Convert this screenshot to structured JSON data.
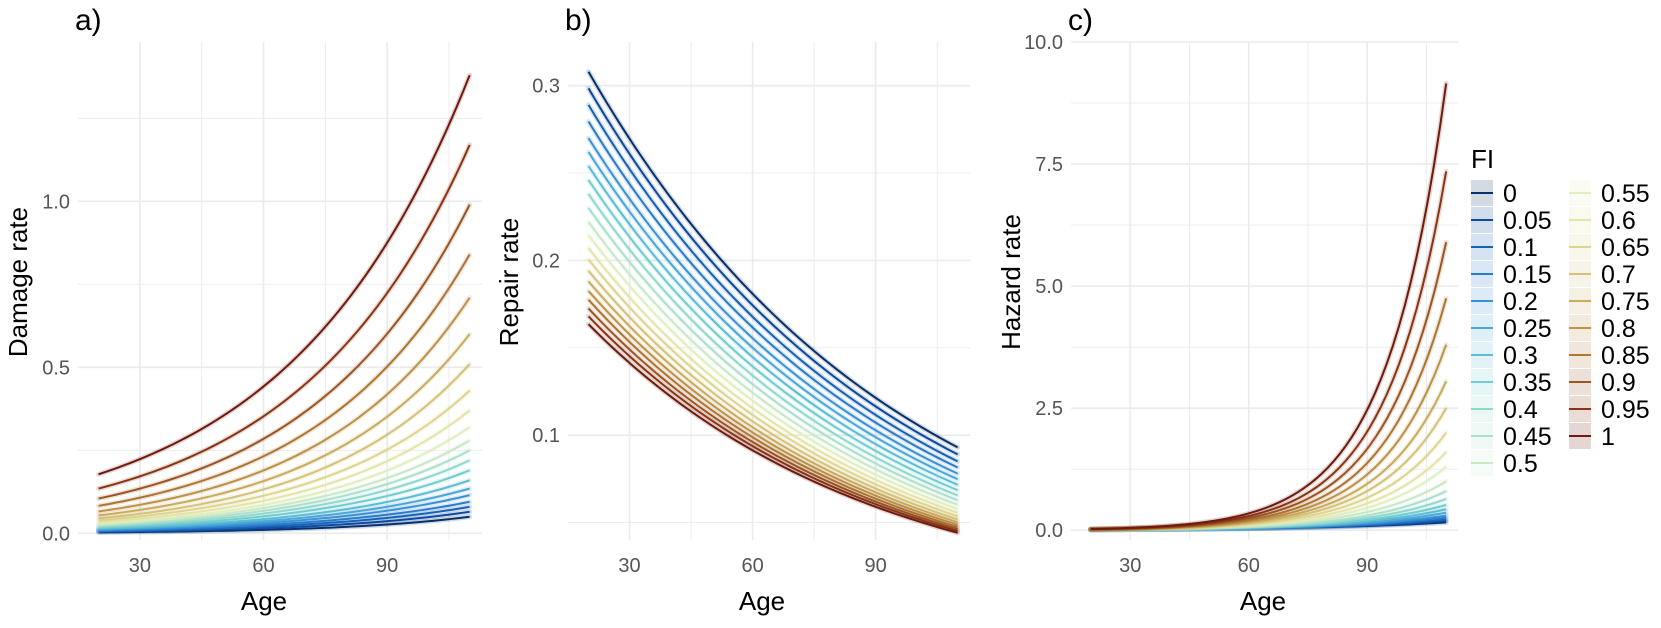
{
  "palette": [
    "#08306b",
    "#0b4a9c",
    "#1663b5",
    "#2a7ccb",
    "#3a92d6",
    "#4aa7d8",
    "#5cbcd6",
    "#71cccf",
    "#8ed9cc",
    "#acdfcc",
    "#c8e8c6",
    "#dfefbf",
    "#e4e4a8",
    "#ddd58e",
    "#d4c278",
    "#c9ab5e",
    "#bc9148",
    "#ad7534",
    "#9b5523",
    "#883516",
    "#6e1a0c"
  ],
  "legend": {
    "title": "FI",
    "levels": [
      "0",
      "0.05",
      "0.1",
      "0.15",
      "0.2",
      "0.25",
      "0.3",
      "0.35",
      "0.4",
      "0.45",
      "0.5",
      "0.55",
      "0.6",
      "0.65",
      "0.7",
      "0.75",
      "0.8",
      "0.85",
      "0.9",
      "0.95",
      "1"
    ]
  },
  "chart_data": [
    {
      "type": "line",
      "panel_label": "a)",
      "xlabel": "Age",
      "ylabel": "Damage rate",
      "xlim": [
        15,
        113
      ],
      "ylim": [
        -0.02,
        1.48
      ],
      "x_ticks": [
        30,
        60,
        90
      ],
      "x_tick_labels": [
        "30",
        "60",
        "90"
      ],
      "y_ticks": [
        0.0,
        0.5,
        1.0
      ],
      "y_tick_labels": [
        "0.0",
        "0.5",
        "1.0"
      ],
      "x_range": [
        20,
        110
      ],
      "model": "exponential",
      "series_start": [
        0.003,
        0.005,
        0.007,
        0.009,
        0.011,
        0.013,
        0.015,
        0.018,
        0.021,
        0.024,
        0.027,
        0.03,
        0.034,
        0.039,
        0.045,
        0.054,
        0.066,
        0.083,
        0.105,
        0.135,
        0.178
      ],
      "series_end": [
        0.05,
        0.065,
        0.08,
        0.095,
        0.115,
        0.135,
        0.16,
        0.19,
        0.22,
        0.25,
        0.28,
        0.32,
        0.37,
        0.43,
        0.51,
        0.6,
        0.71,
        0.84,
        0.99,
        1.17,
        1.38
      ]
    },
    {
      "type": "line",
      "panel_label": "b)",
      "xlabel": "Age",
      "ylabel": "Repair rate",
      "xlim": [
        15,
        113
      ],
      "ylim": [
        0.04,
        0.325
      ],
      "x_ticks": [
        30,
        60,
        90
      ],
      "x_tick_labels": [
        "30",
        "60",
        "90"
      ],
      "y_ticks": [
        0.1,
        0.2,
        0.3
      ],
      "y_tick_labels": [
        "0.1",
        "0.2",
        "0.3"
      ],
      "x_range": [
        20,
        110
      ],
      "model": "exponential",
      "series_start": [
        0.308,
        0.2985,
        0.289,
        0.2795,
        0.27,
        0.262,
        0.254,
        0.246,
        0.238,
        0.23,
        0.222,
        0.2145,
        0.207,
        0.2005,
        0.194,
        0.188,
        0.1825,
        0.1775,
        0.1725,
        0.168,
        0.1635
      ],
      "series_end": [
        0.093,
        0.089,
        0.085,
        0.0815,
        0.078,
        0.0748,
        0.0716,
        0.0685,
        0.0655,
        0.0628,
        0.0602,
        0.0578,
        0.0556,
        0.0536,
        0.0518,
        0.0502,
        0.0488,
        0.0475,
        0.0463,
        0.0452,
        0.0441
      ]
    },
    {
      "type": "line",
      "panel_label": "c)",
      "xlabel": "Age",
      "ylabel": "Hazard rate",
      "xlim": [
        15,
        113
      ],
      "ylim": [
        -0.2,
        10.0
      ],
      "x_ticks": [
        30,
        60,
        90
      ],
      "x_tick_labels": [
        "30",
        "60",
        "90"
      ],
      "y_ticks": [
        0.0,
        2.5,
        5.0,
        7.5,
        10.0
      ],
      "y_tick_labels": [
        "0.0",
        "2.5",
        "5.0",
        "7.5",
        "10.0"
      ],
      "x_range": [
        20,
        110
      ],
      "model": "exponential",
      "series_start": [
        0.01,
        0.01,
        0.01,
        0.01,
        0.01,
        0.01,
        0.01,
        0.01,
        0.01,
        0.01,
        0.012,
        0.012,
        0.013,
        0.014,
        0.015,
        0.016,
        0.017,
        0.018,
        0.02,
        0.022,
        0.025
      ],
      "series_end": [
        0.16,
        0.19,
        0.22,
        0.26,
        0.3,
        0.36,
        0.43,
        0.52,
        0.64,
        0.8,
        1.0,
        1.3,
        1.6,
        2.0,
        2.5,
        3.05,
        3.8,
        4.75,
        5.9,
        7.35,
        9.15
      ]
    }
  ]
}
